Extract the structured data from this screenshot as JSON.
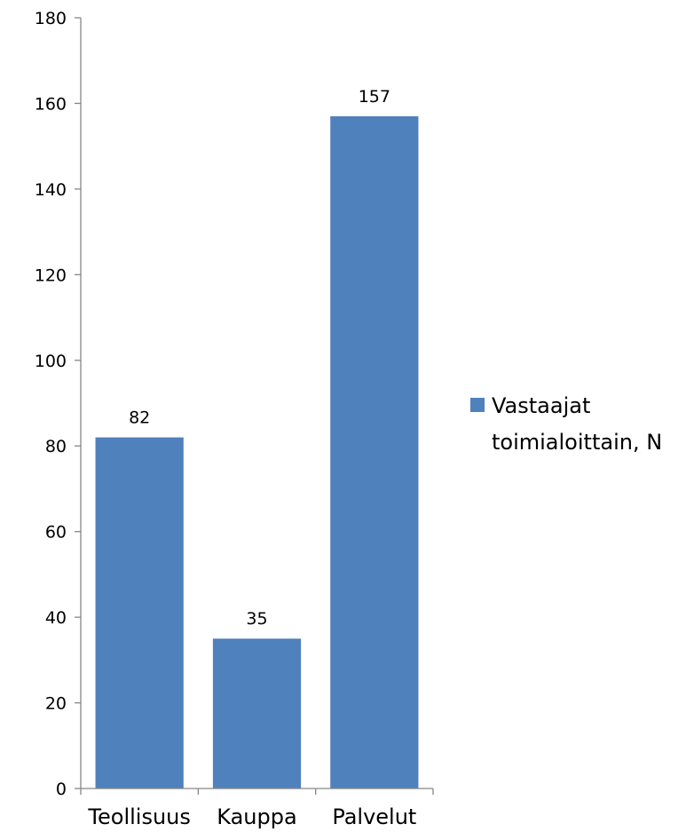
{
  "chart_data": {
    "type": "bar",
    "categories": [
      "Teollisuus",
      "Kauppa",
      "Palvelut"
    ],
    "series": [
      {
        "name": "Vastaajat toimialoittain, N",
        "values": [
          82,
          35,
          157
        ],
        "color": "#4F81BD"
      }
    ],
    "data_labels": [
      "82",
      "35",
      "157"
    ],
    "ylim": [
      0,
      180
    ],
    "yticks": [
      0,
      20,
      40,
      60,
      80,
      100,
      120,
      140,
      160,
      180
    ],
    "grid": false,
    "legend": {
      "position": "right",
      "lines": [
        "Vastaajat",
        "toimialoittain, N"
      ]
    },
    "axis_color": "#868686"
  }
}
